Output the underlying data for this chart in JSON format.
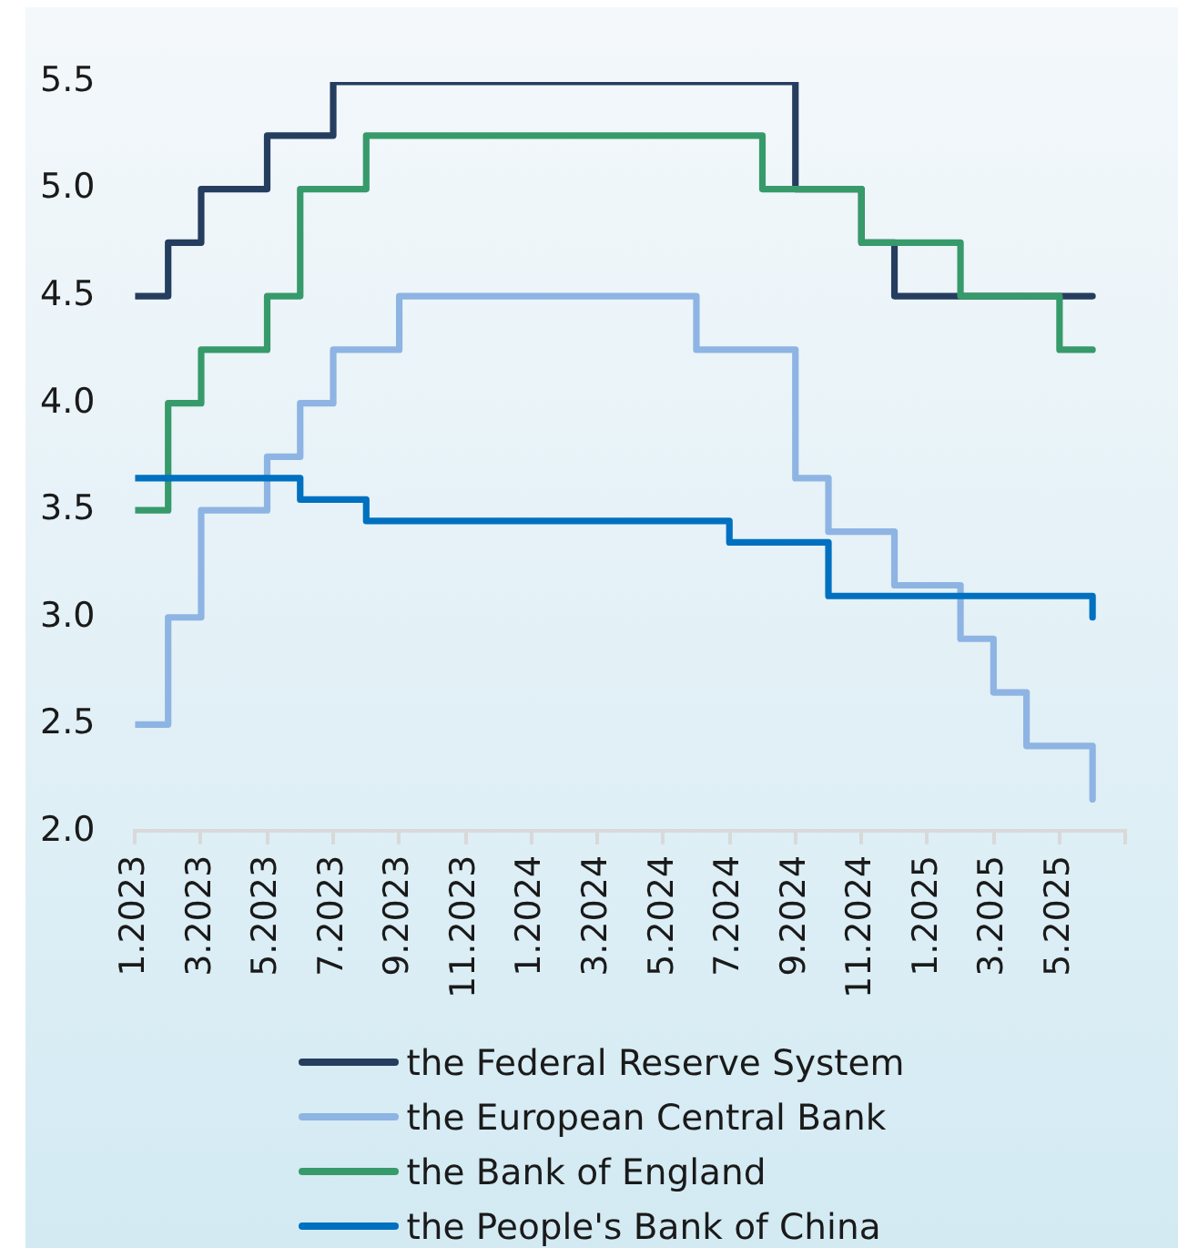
{
  "chart_data": {
    "type": "step",
    "x": [
      "2023-01",
      "2023-02",
      "2023-03",
      "2023-04",
      "2023-05",
      "2023-06",
      "2023-07",
      "2023-08",
      "2023-09",
      "2023-10",
      "2023-11",
      "2023-12",
      "2024-01",
      "2024-02",
      "2024-03",
      "2024-04",
      "2024-05",
      "2024-06",
      "2024-07",
      "2024-08",
      "2024-09",
      "2024-10",
      "2024-11",
      "2024-12",
      "2025-01",
      "2025-02",
      "2025-03",
      "2025-04",
      "2025-05",
      "2025-06"
    ],
    "series": [
      {
        "name": "the Federal Reserve System",
        "color": "#253d5e",
        "values": [
          4.5,
          4.75,
          5,
          5,
          5.25,
          5.25,
          5.5,
          5.5,
          5.5,
          5.5,
          5.5,
          5.5,
          5.5,
          5.5,
          5.5,
          5.5,
          5.5,
          5.5,
          5.5,
          5.5,
          5,
          5,
          4.75,
          4.5,
          4.5,
          4.5,
          4.5,
          4.5,
          4.5,
          4.5
        ]
      },
      {
        "name": "the European Central Bank",
        "color": "#8eb4e3",
        "values": [
          2.5,
          3,
          3.5,
          3.5,
          3.75,
          4,
          4.25,
          4.25,
          4.5,
          4.5,
          4.5,
          4.5,
          4.5,
          4.5,
          4.5,
          4.5,
          4.5,
          4.25,
          4.25,
          4.25,
          3.65,
          3.4,
          3.4,
          3.15,
          3.15,
          2.9,
          2.65,
          2.4,
          2.4,
          2.15
        ]
      },
      {
        "name": "the Bank of England",
        "color": "#379a6b",
        "values": [
          3.5,
          4,
          4.25,
          4.25,
          4.5,
          5,
          5,
          5.25,
          5.25,
          5.25,
          5.25,
          5.25,
          5.25,
          5.25,
          5.25,
          5.25,
          5.25,
          5.25,
          5.25,
          5,
          5,
          5,
          4.75,
          4.75,
          4.75,
          4.5,
          4.5,
          4.5,
          4.25,
          4.25
        ]
      },
      {
        "name": "the People's Bank of China",
        "color": "#0070c0",
        "values": [
          3.65,
          3.65,
          3.65,
          3.65,
          3.65,
          3.55,
          3.55,
          3.45,
          3.45,
          3.45,
          3.45,
          3.45,
          3.45,
          3.45,
          3.45,
          3.45,
          3.45,
          3.45,
          3.35,
          3.35,
          3.35,
          3.1,
          3.1,
          3.1,
          3.1,
          3.1,
          3.1,
          3.1,
          3.1,
          3
        ]
      }
    ],
    "xlim": [
      "2023-01",
      "2025-07"
    ],
    "xticks": [
      {
        "value": "2023-01",
        "label": "1.2023"
      },
      {
        "value": "2023-03",
        "label": "3.2023"
      },
      {
        "value": "2023-05",
        "label": "5.2023"
      },
      {
        "value": "2023-07",
        "label": "7.2023"
      },
      {
        "value": "2023-09",
        "label": "9.2023"
      },
      {
        "value": "2023-11",
        "label": "11.2023"
      },
      {
        "value": "2024-01",
        "label": "1.2024"
      },
      {
        "value": "2024-03",
        "label": "3.2024"
      },
      {
        "value": "2024-05",
        "label": "5.2024"
      },
      {
        "value": "2024-07",
        "label": "7.2024"
      },
      {
        "value": "2024-09",
        "label": "9.2024"
      },
      {
        "value": "2024-11",
        "label": "11.2024"
      },
      {
        "value": "2025-01",
        "label": "1.2025"
      },
      {
        "value": "2025-03",
        "label": "3.2025"
      },
      {
        "value": "2025-05",
        "label": "5.2025"
      },
      {
        "value": "2025-07",
        "label": null
      }
    ],
    "ylim": [
      2,
      5.5
    ],
    "yticks": [
      {
        "value": 2,
        "label": "2.0"
      },
      2.5,
      {
        "value": 3,
        "label": "3.0"
      },
      3.5,
      {
        "value": 4,
        "label": "4.0"
      },
      4.5,
      {
        "value": 5,
        "label": "5.0"
      },
      5.5
    ],
    "grid": false,
    "legend": "bottom",
    "marker": "none",
    "line_style": "solid"
  }
}
